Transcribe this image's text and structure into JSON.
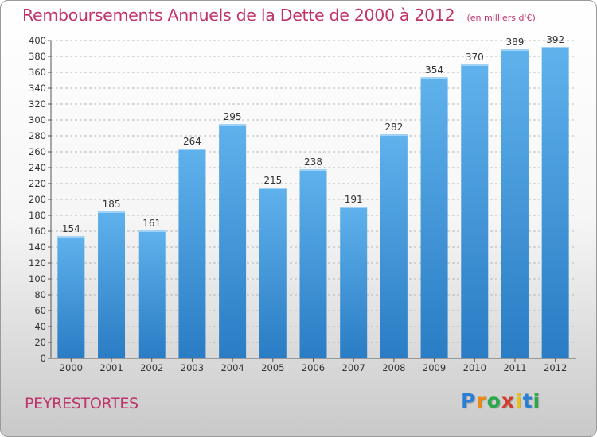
{
  "title": "Remboursements Annuels de la Dette de 2000 à 2012",
  "subtitle": "(en milliers d'€)",
  "commune": "PEYRESTORTES",
  "logo": {
    "letters": [
      "P",
      "r",
      "o",
      "x",
      "i",
      "t",
      "i"
    ],
    "colors": [
      "#2a7fd4",
      "#e8891a",
      "#2aa84a",
      "#d43a2a",
      "#e8c21a",
      "#2a7fd4",
      "#2aa84a"
    ]
  },
  "colors": {
    "bar": "#3d9be0",
    "bar_light": "#66b6ee",
    "bar_dark": "#2a7fc8",
    "text": "#c0336b"
  },
  "chart_data": {
    "type": "bar",
    "title": "Remboursements Annuels de la Dette de 2000 à 2012",
    "subtitle": "(en milliers d'€)",
    "xlabel": "",
    "ylabel": "",
    "categories": [
      "2000",
      "2001",
      "2002",
      "2003",
      "2004",
      "2005",
      "2006",
      "2007",
      "2008",
      "2009",
      "2010",
      "2011",
      "2012"
    ],
    "values": [
      154,
      185,
      161,
      264,
      295,
      215,
      238,
      191,
      282,
      354,
      370,
      389,
      392
    ],
    "ylim": [
      0,
      400
    ],
    "yticks": [
      0,
      20,
      40,
      60,
      80,
      100,
      120,
      140,
      160,
      180,
      200,
      220,
      240,
      260,
      280,
      300,
      320,
      340,
      360,
      380,
      400
    ],
    "grid": "horizontal dashed",
    "legend": "none"
  }
}
